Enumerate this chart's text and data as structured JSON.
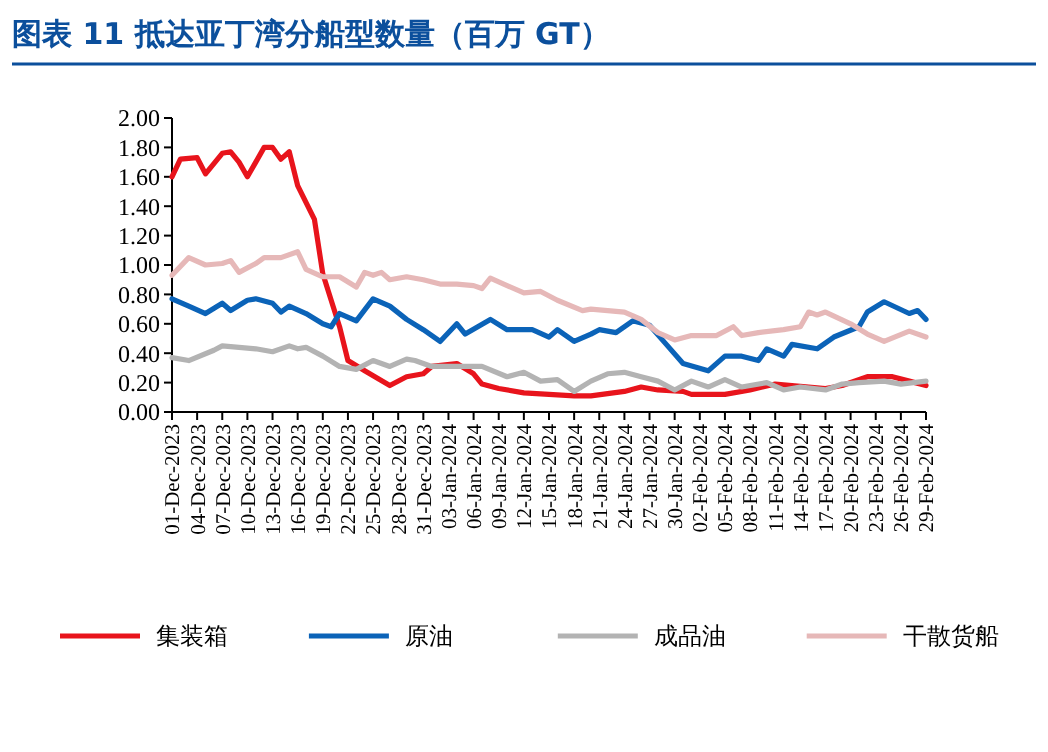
{
  "chart_data": {
    "type": "line",
    "title": "图表 11 抵达亚丁湾分船型数量（百万 GT）",
    "xlim": [
      "2023-12-01",
      "2024-02-29"
    ],
    "xticks": [
      {
        "value": "2023-12-01",
        "label": "01-Dec-2023"
      },
      {
        "value": "2023-12-04",
        "label": "04-Dec-2023"
      },
      {
        "value": "2023-12-07",
        "label": "07-Dec-2023"
      },
      {
        "value": "2023-12-10",
        "label": "10-Dec-2023"
      },
      {
        "value": "2023-12-13",
        "label": "13-Dec-2023"
      },
      {
        "value": "2023-12-16",
        "label": "16-Dec-2023"
      },
      {
        "value": "2023-12-19",
        "label": "19-Dec-2023"
      },
      {
        "value": "2023-12-22",
        "label": "22-Dec-2023"
      },
      {
        "value": "2023-12-25",
        "label": "25-Dec-2023"
      },
      {
        "value": "2023-12-28",
        "label": "28-Dec-2023"
      },
      {
        "value": "2023-12-31",
        "label": "31-Dec-2023"
      },
      {
        "value": "2024-01-03",
        "label": "03-Jan-2024"
      },
      {
        "value": "2024-01-06",
        "label": "06-Jan-2024"
      },
      {
        "value": "2024-01-09",
        "label": "09-Jan-2024"
      },
      {
        "value": "2024-01-12",
        "label": "12-Jan-2024"
      },
      {
        "value": "2024-01-15",
        "label": "15-Jan-2024"
      },
      {
        "value": "2024-01-18",
        "label": "18-Jan-2024"
      },
      {
        "value": "2024-01-21",
        "label": "21-Jan-2024"
      },
      {
        "value": "2024-01-24",
        "label": "24-Jan-2024"
      },
      {
        "value": "2024-01-27",
        "label": "27-Jan-2024"
      },
      {
        "value": "2024-01-30",
        "label": "30-Jan-2024"
      },
      {
        "value": "2024-02-02",
        "label": "02-Feb-2024"
      },
      {
        "value": "2024-02-05",
        "label": "05-Feb-2024"
      },
      {
        "value": "2024-02-08",
        "label": "08-Feb-2024"
      },
      {
        "value": "2024-02-11",
        "label": "11-Feb-2024"
      },
      {
        "value": "2024-02-14",
        "label": "14-Feb-2024"
      },
      {
        "value": "2024-02-17",
        "label": "17-Feb-2024"
      },
      {
        "value": "2024-02-20",
        "label": "20-Feb-2024"
      },
      {
        "value": "2024-02-23",
        "label": "23-Feb-2024"
      },
      {
        "value": "2024-02-26",
        "label": "26-Feb-2024"
      },
      {
        "value": "2024-02-29",
        "label": "29-Feb-2024"
      }
    ],
    "ylim": [
      0,
      2
    ],
    "yticks": [
      {
        "value": 0,
        "label": "0.00"
      },
      {
        "value": 0.2,
        "label": "0.20"
      },
      {
        "value": 0.4,
        "label": "0.40"
      },
      {
        "value": 0.6,
        "label": "0.60"
      },
      {
        "value": 0.8,
        "label": "0.80"
      },
      {
        "value": 1,
        "label": "1.00"
      },
      {
        "value": 1.2,
        "label": "1.20"
      },
      {
        "value": 1.4,
        "label": "1.40"
      },
      {
        "value": 1.6,
        "label": "1.60"
      },
      {
        "value": 1.8,
        "label": "1.80"
      },
      {
        "value": 2,
        "label": "2.00"
      }
    ],
    "grid": false,
    "legend": "bottom",
    "marker": "none",
    "line_style": "solid",
    "series": [
      {
        "name": "集装箱",
        "color": "#e8141c",
        "x": [
          "2023-12-01",
          "2023-12-02",
          "2023-12-04",
          "2023-12-05",
          "2023-12-07",
          "2023-12-08",
          "2023-12-09",
          "2023-12-10",
          "2023-12-11",
          "2023-12-12",
          "2023-12-13",
          "2023-12-14",
          "2023-12-15",
          "2023-12-16",
          "2023-12-18",
          "2023-12-19",
          "2023-12-21",
          "2023-12-22",
          "2023-12-24",
          "2023-12-27",
          "2023-12-29",
          "2023-12-31",
          "2024-01-01",
          "2024-01-04",
          "2024-01-06",
          "2024-01-07",
          "2024-01-09",
          "2024-01-12",
          "2024-01-15",
          "2024-01-18",
          "2024-01-20",
          "2024-01-24",
          "2024-01-26",
          "2024-01-28",
          "2024-01-31",
          "2024-02-01",
          "2024-02-05",
          "2024-02-08",
          "2024-02-11",
          "2024-02-13",
          "2024-02-17",
          "2024-02-19",
          "2024-02-22",
          "2024-02-25",
          "2024-02-27",
          "2024-02-29"
        ],
        "values": [
          1.6,
          1.72,
          1.73,
          1.62,
          1.76,
          1.77,
          1.7,
          1.6,
          1.7,
          1.8,
          1.8,
          1.72,
          1.77,
          1.54,
          1.31,
          0.94,
          0.58,
          0.35,
          0.28,
          0.18,
          0.24,
          0.26,
          0.31,
          0.33,
          0.26,
          0.19,
          0.16,
          0.13,
          0.12,
          0.11,
          0.11,
          0.14,
          0.17,
          0.15,
          0.14,
          0.12,
          0.12,
          0.15,
          0.19,
          0.18,
          0.16,
          0.18,
          0.24,
          0.24,
          0.21,
          0.18
        ]
      },
      {
        "name": "原油",
        "color": "#0b63b8",
        "x": [
          "2023-12-01",
          "2023-12-03",
          "2023-12-05",
          "2023-12-07",
          "2023-12-08",
          "2023-12-10",
          "2023-12-11",
          "2023-12-13",
          "2023-12-14",
          "2023-12-15",
          "2023-12-17",
          "2023-12-19",
          "2023-12-20",
          "2023-12-21",
          "2023-12-23",
          "2023-12-25",
          "2023-12-27",
          "2023-12-29",
          "2023-12-31",
          "2024-01-02",
          "2024-01-04",
          "2024-01-05",
          "2024-01-08",
          "2024-01-10",
          "2024-01-13",
          "2024-01-15",
          "2024-01-16",
          "2024-01-18",
          "2024-01-20",
          "2024-01-21",
          "2024-01-23",
          "2024-01-25",
          "2024-01-27",
          "2024-01-29",
          "2024-01-31",
          "2024-02-03",
          "2024-02-05",
          "2024-02-07",
          "2024-02-09",
          "2024-02-10",
          "2024-02-12",
          "2024-02-13",
          "2024-02-16",
          "2024-02-18",
          "2024-02-21",
          "2024-02-22",
          "2024-02-24",
          "2024-02-27",
          "2024-02-28",
          "2024-02-29"
        ],
        "values": [
          0.77,
          0.72,
          0.67,
          0.74,
          0.69,
          0.76,
          0.77,
          0.74,
          0.68,
          0.72,
          0.67,
          0.6,
          0.58,
          0.67,
          0.62,
          0.77,
          0.72,
          0.63,
          0.56,
          0.48,
          0.6,
          0.53,
          0.63,
          0.56,
          0.56,
          0.51,
          0.56,
          0.48,
          0.53,
          0.56,
          0.54,
          0.62,
          0.59,
          0.46,
          0.33,
          0.28,
          0.38,
          0.38,
          0.35,
          0.43,
          0.38,
          0.46,
          0.43,
          0.51,
          0.58,
          0.68,
          0.75,
          0.67,
          0.69,
          0.63
        ]
      },
      {
        "name": "成品油",
        "color": "#b3b3b3",
        "x": [
          "2023-12-01",
          "2023-12-03",
          "2023-12-06",
          "2023-12-07",
          "2023-12-09",
          "2023-12-11",
          "2023-12-13",
          "2023-12-15",
          "2023-12-16",
          "2023-12-17",
          "2023-12-19",
          "2023-12-21",
          "2023-12-23",
          "2023-12-25",
          "2023-12-27",
          "2023-12-29",
          "2023-12-30",
          "2024-01-01",
          "2024-01-04",
          "2024-01-07",
          "2024-01-10",
          "2024-01-12",
          "2024-01-14",
          "2024-01-16",
          "2024-01-18",
          "2024-01-20",
          "2024-01-22",
          "2024-01-24",
          "2024-01-26",
          "2024-01-28",
          "2024-01-30",
          "2024-02-01",
          "2024-02-03",
          "2024-02-05",
          "2024-02-07",
          "2024-02-10",
          "2024-02-12",
          "2024-02-14",
          "2024-02-17",
          "2024-02-19",
          "2024-02-21",
          "2024-02-24",
          "2024-02-26",
          "2024-02-29"
        ],
        "values": [
          0.37,
          0.35,
          0.42,
          0.45,
          0.44,
          0.43,
          0.41,
          0.45,
          0.43,
          0.44,
          0.38,
          0.31,
          0.29,
          0.35,
          0.31,
          0.36,
          0.35,
          0.31,
          0.31,
          0.31,
          0.24,
          0.27,
          0.21,
          0.22,
          0.14,
          0.21,
          0.26,
          0.27,
          0.24,
          0.21,
          0.15,
          0.21,
          0.17,
          0.22,
          0.17,
          0.2,
          0.15,
          0.17,
          0.15,
          0.19,
          0.2,
          0.21,
          0.19,
          0.21
        ]
      },
      {
        "name": "干散货船",
        "color": "#e6b8b8",
        "x": [
          "2023-12-01",
          "2023-12-03",
          "2023-12-05",
          "2023-12-07",
          "2023-12-08",
          "2023-12-09",
          "2023-12-11",
          "2023-12-12",
          "2023-12-14",
          "2023-12-16",
          "2023-12-17",
          "2023-12-19",
          "2023-12-21",
          "2023-12-23",
          "2023-12-24",
          "2023-12-25",
          "2023-12-26",
          "2023-12-27",
          "2023-12-29",
          "2023-12-31",
          "2024-01-02",
          "2024-01-04",
          "2024-01-06",
          "2024-01-07",
          "2024-01-08",
          "2024-01-10",
          "2024-01-12",
          "2024-01-14",
          "2024-01-16",
          "2024-01-19",
          "2024-01-20",
          "2024-01-24",
          "2024-01-26",
          "2024-01-28",
          "2024-01-30",
          "2024-02-01",
          "2024-02-04",
          "2024-02-06",
          "2024-02-07",
          "2024-02-09",
          "2024-02-12",
          "2024-02-14",
          "2024-02-15",
          "2024-02-16",
          "2024-02-17",
          "2024-02-20",
          "2024-02-22",
          "2024-02-24",
          "2024-02-27",
          "2024-02-29"
        ],
        "values": [
          0.93,
          1.05,
          1.0,
          1.01,
          1.03,
          0.95,
          1.01,
          1.05,
          1.05,
          1.09,
          0.97,
          0.92,
          0.92,
          0.85,
          0.95,
          0.93,
          0.95,
          0.9,
          0.92,
          0.9,
          0.87,
          0.87,
          0.86,
          0.84,
          0.91,
          0.86,
          0.81,
          0.82,
          0.76,
          0.69,
          0.7,
          0.68,
          0.63,
          0.54,
          0.49,
          0.52,
          0.52,
          0.58,
          0.52,
          0.54,
          0.56,
          0.58,
          0.68,
          0.66,
          0.68,
          0.6,
          0.53,
          0.48,
          0.55,
          0.51
        ]
      }
    ]
  }
}
